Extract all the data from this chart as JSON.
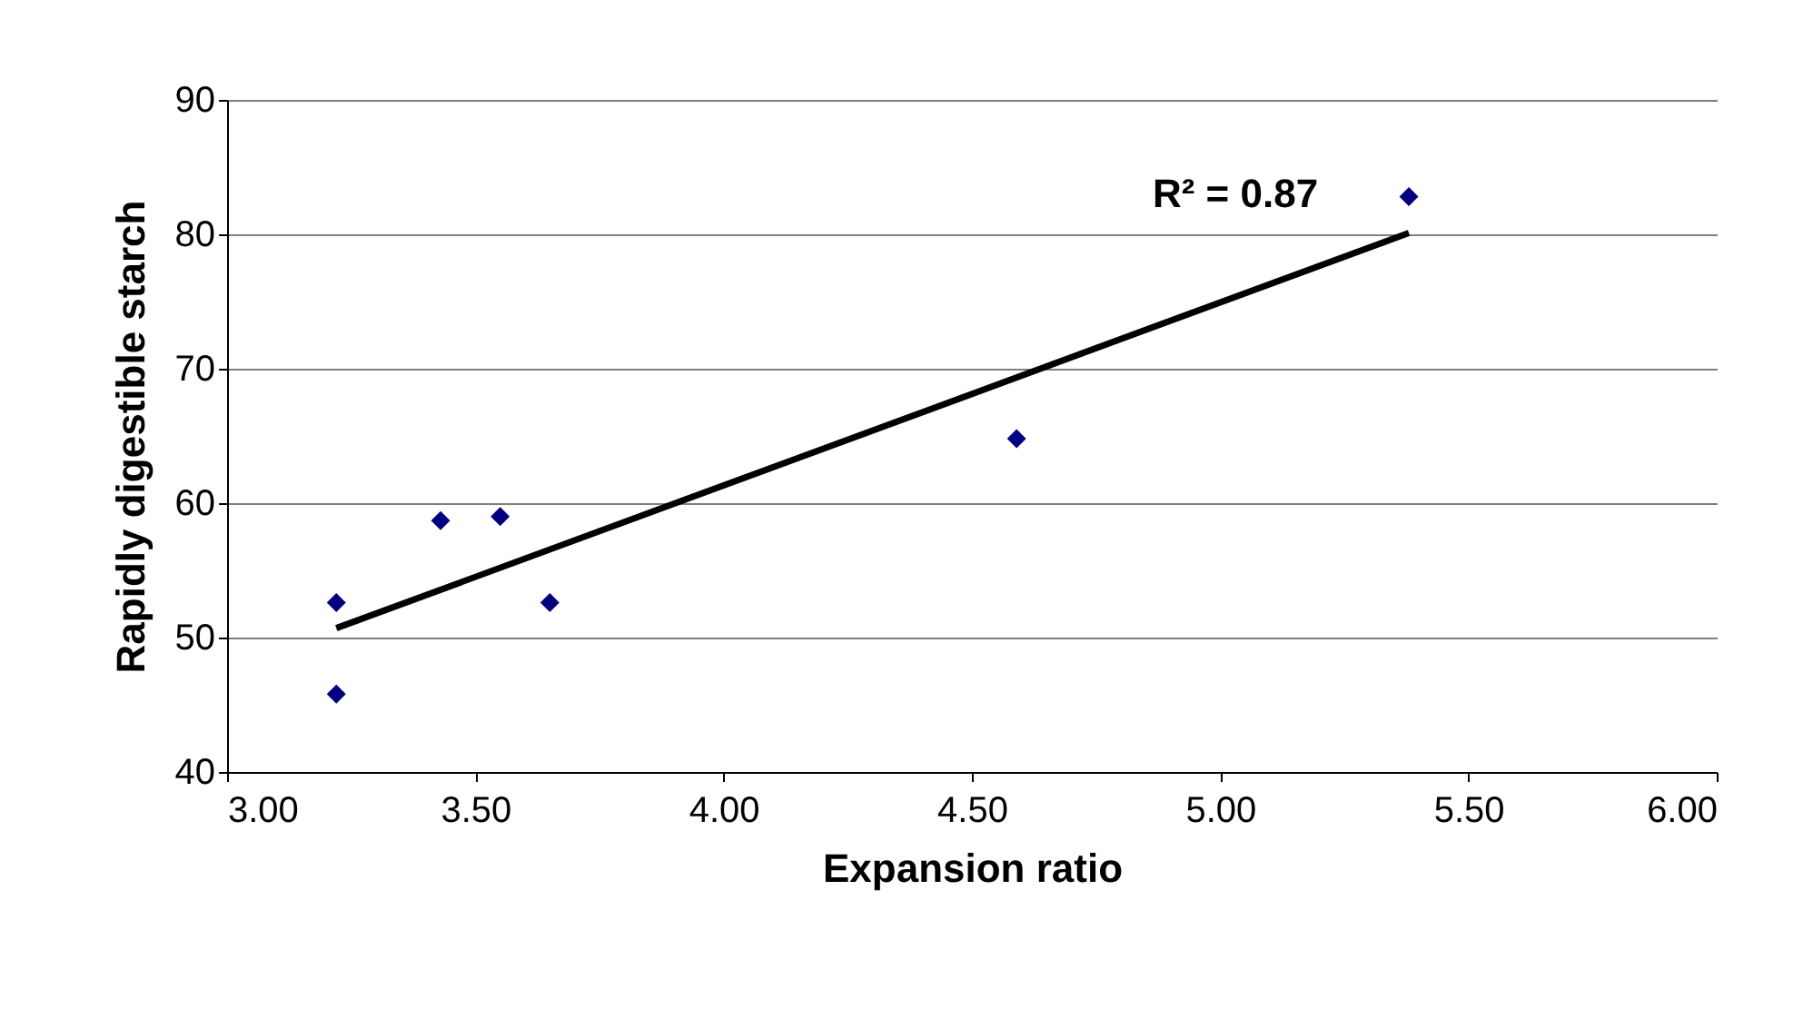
{
  "chart_data": {
    "type": "scatter",
    "xlabel": "Expansion ratio",
    "ylabel": "Rapidly digestible starch",
    "series": [
      {
        "color": "#000080",
        "marker": "diamond",
        "x": [
          3.22,
          3.22,
          3.43,
          3.55,
          3.65,
          4.59,
          5.38
        ],
        "values": [
          52.6,
          45.8,
          58.7,
          59.0,
          52.6,
          64.8,
          82.8
        ]
      },
      {
        "type": "line",
        "color": "#000000",
        "marker": "none",
        "line_style": "solid",
        "x": [
          3.22,
          5.38
        ],
        "values": [
          50.7,
          80.1
        ]
      }
    ],
    "xlim": [
      3.0,
      6.0
    ],
    "xticks": [
      {
        "value": 3,
        "label": "3.00"
      },
      {
        "value": 3.5,
        "label": "3.50"
      },
      {
        "value": 4,
        "label": "4.00"
      },
      {
        "value": 4.5,
        "label": "4.50"
      },
      {
        "value": 5,
        "label": "5.00"
      },
      {
        "value": 5.5,
        "label": "5.50"
      },
      {
        "value": 6,
        "label": "6.00"
      }
    ],
    "ylim": [
      40,
      90
    ],
    "yticks": [
      40,
      50,
      60,
      70,
      80,
      90
    ],
    "grid": "y",
    "annotations": [
      "R² = 0.87"
    ]
  }
}
